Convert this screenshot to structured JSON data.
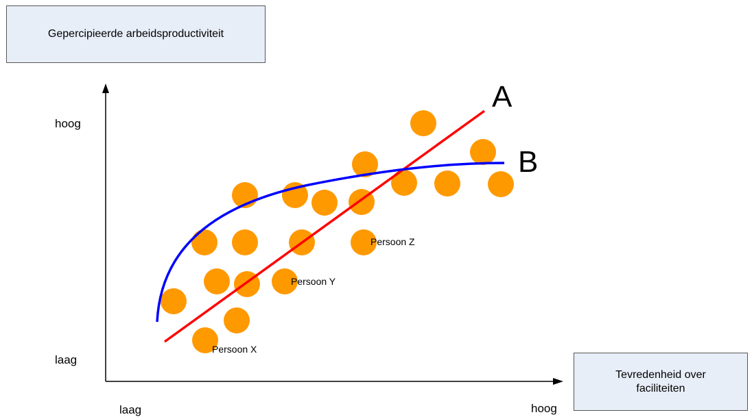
{
  "y_axis_title": "Gepercipieerde arbeidsproductiviteit",
  "x_axis_title": "Tevredenheid over faciliteiten",
  "y_high": "hoog",
  "y_low": "laag",
  "x_low": "laag",
  "x_high": "hoog",
  "line_a_label": "A",
  "line_b_label": "B",
  "point_labels": [
    "Persoon X",
    "Persoon Y",
    "Persoon Z"
  ],
  "colors": {
    "point": "#ff9900",
    "line_a": "#ff0000",
    "line_b": "#0000ff",
    "box": "#e8eef8"
  }
}
